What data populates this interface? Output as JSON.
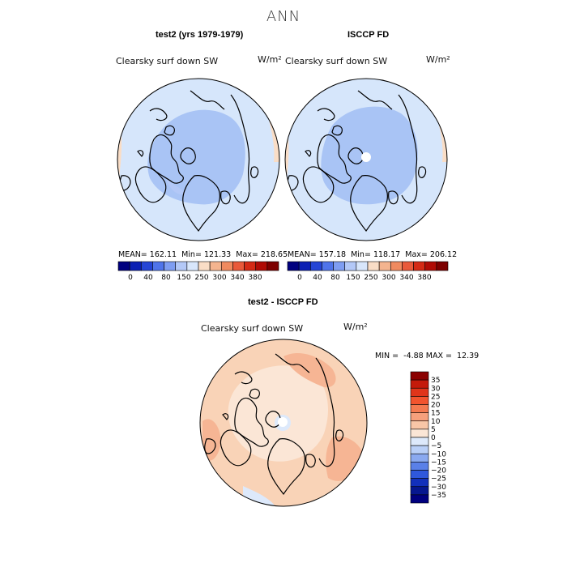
{
  "page_title": "ANN",
  "panels": [
    {
      "title": "test2 (yrs 1979-1979)",
      "field": "Clearsky surf down SW",
      "units": "W/m²",
      "stats": {
        "mean_label": "MEAN=",
        "mean": "162.11",
        "min_label": "Min=",
        "min": "121.33",
        "max_label": "Max=",
        "max": "218.65"
      },
      "pole_hole": false
    },
    {
      "title": "ISCCP FD",
      "field": "Clearsky surf down SW",
      "units": "W/m²",
      "stats": {
        "mean_label": "MEAN=",
        "mean": "157.18",
        "min_label": "Min=",
        "min": "118.17",
        "max_label": "Max=",
        "max": "206.12"
      },
      "pole_hole": true
    }
  ],
  "diff_panel": {
    "title": "test2 - ISCCP FD",
    "field": "Clearsky surf down SW",
    "units": "W/m²",
    "stats": {
      "min_label": "MIN =",
      "min": "-4.88",
      "max_label": "MAX =",
      "max": "12.39"
    }
  },
  "chart_data": [
    {
      "type": "heatmap",
      "projection": "north-polar-stereographic",
      "title": "test2 (yrs 1979-1979)",
      "variable": "Clearsky surf down SW",
      "units": "W/m²",
      "mean": 162.11,
      "min": 121.33,
      "max": 218.65,
      "colorbar_levels": [
        0,
        40,
        80,
        150,
        250,
        300,
        340,
        380
      ],
      "colorbar_colors": [
        "#00007f",
        "#0b1fb3",
        "#2545d6",
        "#4f74ea",
        "#7e9df2",
        "#b3c8f7",
        "#d8e6fb",
        "#f9ddc6",
        "#f4b48f",
        "#f08a5f",
        "#e9593a",
        "#d42a15",
        "#b00b05",
        "#7d0000"
      ]
    },
    {
      "type": "heatmap",
      "projection": "north-polar-stereographic",
      "title": "ISCCP FD",
      "variable": "Clearsky surf down SW",
      "units": "W/m²",
      "mean": 157.18,
      "min": 118.17,
      "max": 206.12,
      "colorbar_levels": [
        0,
        40,
        80,
        150,
        250,
        300,
        340,
        380
      ],
      "colorbar_colors": [
        "#00007f",
        "#0b1fb3",
        "#2545d6",
        "#4f74ea",
        "#7e9df2",
        "#b3c8f7",
        "#d8e6fb",
        "#f9ddc6",
        "#f4b48f",
        "#f08a5f",
        "#e9593a",
        "#d42a15",
        "#b00b05",
        "#7d0000"
      ]
    },
    {
      "type": "heatmap",
      "projection": "north-polar-stereographic",
      "title": "test2 - ISCCP FD",
      "variable": "Clearsky surf down SW",
      "units": "W/m²",
      "min": -4.88,
      "max": 12.39,
      "colorbar_levels": [
        35,
        30,
        25,
        20,
        15,
        10,
        5,
        0,
        -5,
        -10,
        -15,
        -20,
        -25,
        -30,
        -35
      ],
      "colorbar_colors": [
        "#8b0000",
        "#c41a0a",
        "#e0351a",
        "#f2542e",
        "#f47a50",
        "#f6a07c",
        "#f8c6a7",
        "#fbe6d6",
        "#dde9fb",
        "#b9cff7",
        "#8aa9f0",
        "#5a80e8",
        "#2f58dc",
        "#1230bb",
        "#06178f",
        "#00007f"
      ]
    }
  ]
}
